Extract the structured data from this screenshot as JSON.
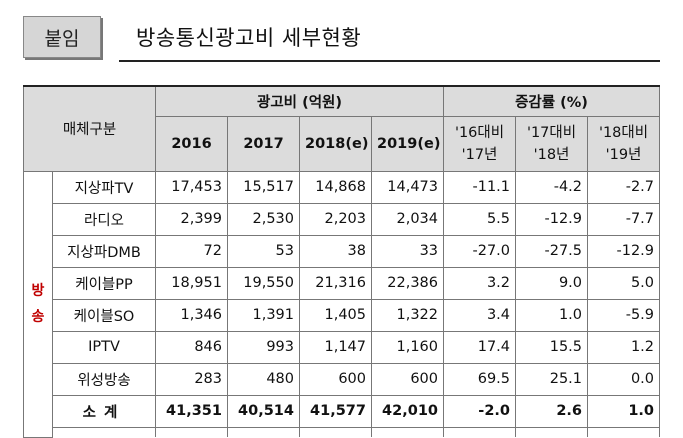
{
  "header": {
    "tag": "붙임",
    "title": "방송통신광고비 세부현황"
  },
  "table": {
    "media_header": "매체구분",
    "ad_cost_header": "광고비 (억원)",
    "growth_header": "증감률 (%)",
    "years": [
      "2016",
      "2017",
      "2018(e)",
      "2019(e)"
    ],
    "growth_cols": [
      {
        "line1": "'16대비",
        "line2": "'17년"
      },
      {
        "line1": "'17대비",
        "line2": "'18년"
      },
      {
        "line1": "'18대비",
        "line2": "'19년"
      }
    ],
    "group_label": "방송",
    "rows": [
      {
        "media": "지상파TV",
        "values": [
          "17,453",
          "15,517",
          "14,868",
          "14,473"
        ],
        "growth": [
          "-11.1",
          "-4.2",
          "-2.7"
        ]
      },
      {
        "media": "라디오",
        "values": [
          "2,399",
          "2,530",
          "2,203",
          "2,034"
        ],
        "growth": [
          "5.5",
          "-12.9",
          "-7.7"
        ]
      },
      {
        "media": "지상파DMB",
        "values": [
          "72",
          "53",
          "38",
          "33"
        ],
        "growth": [
          "-27.0",
          "-27.5",
          "-12.9"
        ]
      },
      {
        "media": "케이블PP",
        "values": [
          "18,951",
          "19,550",
          "21,316",
          "22,386"
        ],
        "growth": [
          "3.2",
          "9.0",
          "5.0"
        ]
      },
      {
        "media": "케이블SO",
        "values": [
          "1,346",
          "1,391",
          "1,405",
          "1,322"
        ],
        "growth": [
          "3.4",
          "1.0",
          "-5.9"
        ]
      },
      {
        "media": "IPTV",
        "values": [
          "846",
          "993",
          "1,147",
          "1,160"
        ],
        "growth": [
          "17.4",
          "15.5",
          "1.2"
        ]
      },
      {
        "media": "위성방송",
        "values": [
          "283",
          "480",
          "600",
          "600"
        ],
        "growth": [
          "69.5",
          "25.1",
          "0.0"
        ]
      }
    ],
    "total": {
      "media": "소계",
      "values": [
        "41,351",
        "40,514",
        "41,577",
        "42,010"
      ],
      "growth": [
        "-2.0",
        "2.6",
        "1.0"
      ]
    }
  }
}
